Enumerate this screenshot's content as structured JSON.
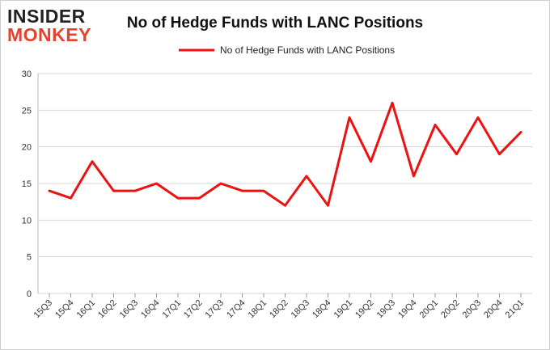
{
  "brand": {
    "line1": "INSIDER",
    "line2": "MONKEY"
  },
  "chart_data": {
    "type": "line",
    "title": "No of Hedge Funds with LANC Positions",
    "xlabel": "",
    "ylabel": "",
    "ylim": [
      0,
      30
    ],
    "yticks": [
      0,
      5,
      10,
      15,
      20,
      25,
      30
    ],
    "grid": true,
    "legend": "top-center",
    "categories": [
      "15Q3",
      "15Q4",
      "16Q1",
      "16Q2",
      "16Q3",
      "16Q4",
      "17Q1",
      "17Q2",
      "17Q3",
      "17Q4",
      "18Q1",
      "18Q2",
      "18Q3",
      "18Q4",
      "19Q1",
      "19Q2",
      "19Q3",
      "19Q4",
      "20Q1",
      "20Q2",
      "20Q3",
      "20Q4",
      "21Q1"
    ],
    "series": [
      {
        "name": "No of Hedge Funds with LANC Positions",
        "color": "#ee1111",
        "values": [
          14,
          13,
          18,
          14,
          14,
          15,
          13,
          13,
          15,
          14,
          14,
          12,
          16,
          12,
          24,
          18,
          26,
          16,
          23,
          19,
          24,
          19,
          22
        ]
      }
    ]
  }
}
